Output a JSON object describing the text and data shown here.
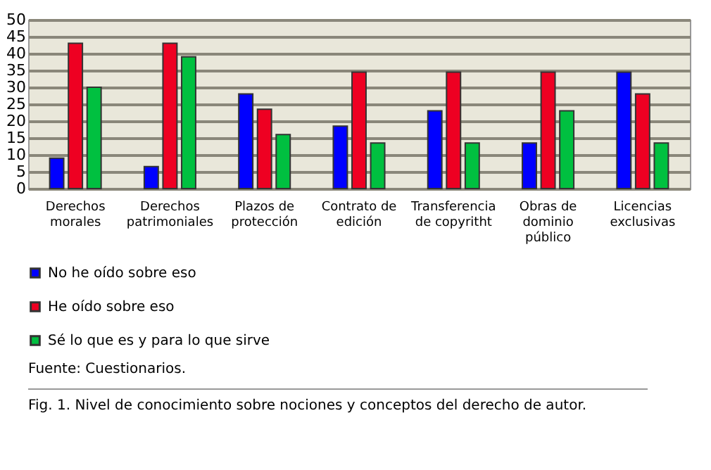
{
  "chart_data": {
    "type": "bar",
    "categories": [
      "Derechos morales",
      "Derechos patrimoniales",
      "Plazos de protección",
      "Contrato de edición",
      "Transferencia de copyritht",
      "Obras de dominio público",
      "Licencias exclusivas"
    ],
    "series": [
      {
        "name": "No he oído sobre eso",
        "color": "#0000ff",
        "values": [
          9,
          6.5,
          28,
          18.5,
          23,
          13.5,
          34.5
        ]
      },
      {
        "name": "He oído sobre eso",
        "color": "#ee0022",
        "values": [
          43,
          43,
          23.5,
          34.5,
          34.5,
          34.5,
          28
        ]
      },
      {
        "name": "Sé lo que es y para lo que sirve",
        "color": "#00c040",
        "values": [
          30,
          39,
          16,
          13.5,
          13.5,
          23,
          13.5
        ]
      }
    ],
    "ylim": [
      0,
      50
    ],
    "yticks": [
      0,
      5,
      10,
      15,
      20,
      25,
      30,
      35,
      40,
      45,
      50
    ],
    "grid": "y",
    "legend": "bottom",
    "annotations": [
      "Fuente: Cuestionarios.",
      "Fig. 1. Nivel de conocimiento sobre nociones y conceptos del derecho de autor."
    ]
  }
}
